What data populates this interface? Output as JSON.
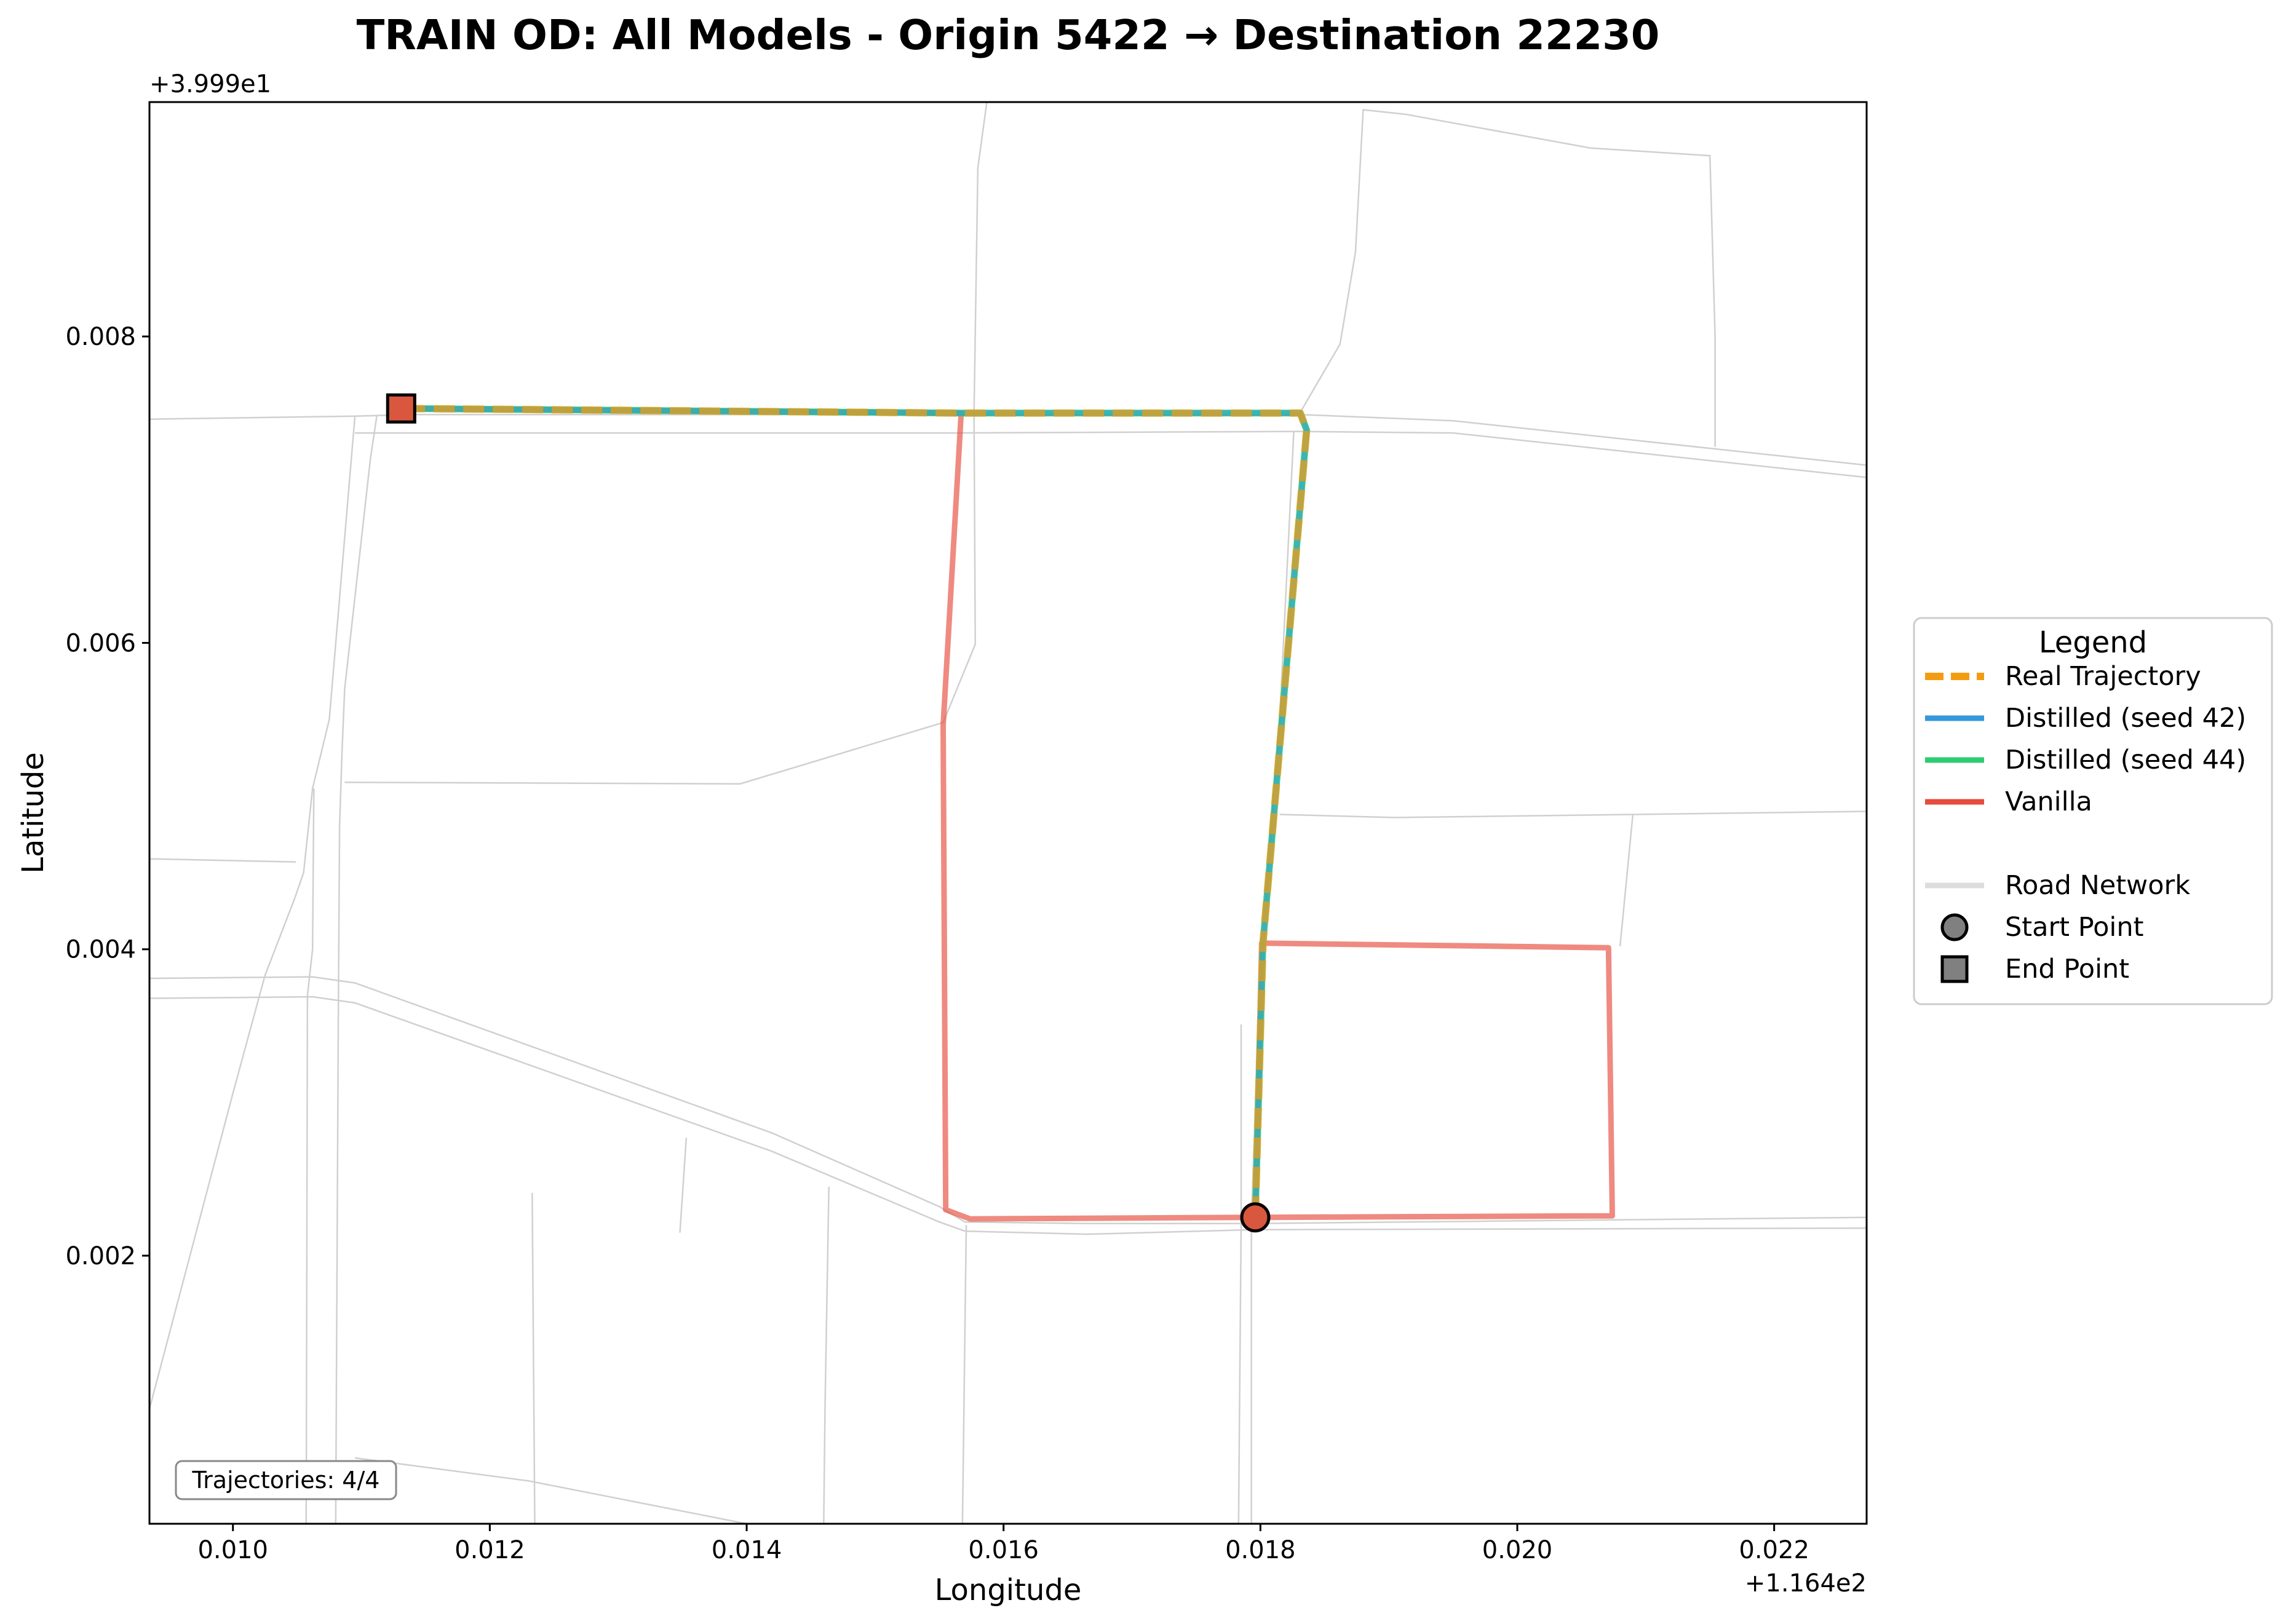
{
  "chart_data": {
    "type": "line",
    "title": "TRAIN OD: All Models - Origin 5422 → Destination 22230",
    "xlabel": "Longitude",
    "ylabel": "Latitude",
    "x_offset_label": "+1.164e2",
    "y_offset_label": "+3.999e1",
    "xlim": [
      0.00935,
      0.02272
    ],
    "ylim": [
      0.00025,
      0.00953
    ],
    "x_ticks": [
      0.01,
      0.012,
      0.014,
      0.016,
      0.018,
      0.02,
      0.022
    ],
    "x_tick_labels": [
      "0.010",
      "0.012",
      "0.014",
      "0.016",
      "0.018",
      "0.020",
      "0.022"
    ],
    "y_ticks": [
      0.002,
      0.004,
      0.006,
      0.008
    ],
    "y_tick_labels": [
      "0.002",
      "0.004",
      "0.006",
      "0.008"
    ],
    "grid": false,
    "legend": {
      "title": "Legend",
      "placement": "outside-right",
      "entries": [
        {
          "label": "Real Trajectory",
          "kind": "dashed-line",
          "color": "#f39c12"
        },
        {
          "label": "Distilled (seed 42)",
          "kind": "line",
          "color": "#3498db"
        },
        {
          "label": "Distilled (seed 44)",
          "kind": "line",
          "color": "#2ecc71"
        },
        {
          "label": "Vanilla",
          "kind": "line",
          "color": "#e74c3c"
        },
        {
          "label": "",
          "kind": "blank",
          "color": ""
        },
        {
          "label": "Road Network",
          "kind": "line",
          "color": "#dddddd"
        },
        {
          "label": "Start Point",
          "kind": "circle",
          "color": "#808080"
        },
        {
          "label": "End Point",
          "kind": "square",
          "color": "#808080"
        }
      ]
    },
    "annotation": "Trajectories: 4/4",
    "start_point": {
      "x": 0.01796,
      "y": 0.00225,
      "color": "#d9573f"
    },
    "end_point": {
      "x": 0.01131,
      "y": 0.00753,
      "color": "#d9573f"
    },
    "series": [
      {
        "name": "Vanilla",
        "color": "#e74c3c",
        "points": [
          [
            0.01796,
            0.00225
          ],
          [
            0.02074,
            0.00226
          ],
          [
            0.02071,
            0.00401
          ],
          [
            0.01801,
            0.00404
          ],
          [
            0.01796,
            0.00225
          ],
          [
            0.01574,
            0.00224
          ],
          [
            0.01555,
            0.0023
          ],
          [
            0.01553,
            0.00546
          ],
          [
            0.01567,
            0.0075
          ],
          [
            0.01131,
            0.00753
          ]
        ]
      },
      {
        "name": "Distilled (seed 44)",
        "color": "#2ecc71",
        "points": [
          [
            0.01796,
            0.00225
          ],
          [
            0.01802,
            0.00404
          ],
          [
            0.01836,
            0.00739
          ],
          [
            0.01831,
            0.0075
          ],
          [
            0.01567,
            0.0075
          ],
          [
            0.01131,
            0.00753
          ]
        ]
      },
      {
        "name": "Distilled (seed 42)",
        "color": "#3498db",
        "points": [
          [
            0.01796,
            0.00225
          ],
          [
            0.01802,
            0.00404
          ],
          [
            0.01836,
            0.00739
          ],
          [
            0.01831,
            0.0075
          ],
          [
            0.01567,
            0.0075
          ],
          [
            0.01131,
            0.00753
          ]
        ]
      },
      {
        "name": "Real Trajectory",
        "color": "#f39c12",
        "points": [
          [
            0.01796,
            0.00225
          ],
          [
            0.01802,
            0.00404
          ],
          [
            0.01836,
            0.00739
          ],
          [
            0.01831,
            0.0075
          ],
          [
            0.01567,
            0.0075
          ],
          [
            0.01131,
            0.00753
          ]
        ]
      }
    ],
    "road_network": [
      [
        [
          0.00935,
          0.00746
        ],
        [
          0.01095,
          0.00748
        ],
        [
          0.0114,
          0.00749
        ],
        [
          0.0155,
          0.00749
        ],
        [
          0.01831,
          0.00749
        ],
        [
          0.0195,
          0.00745
        ],
        [
          0.02272,
          0.00716
        ]
      ],
      [
        [
          0.01095,
          0.00737
        ],
        [
          0.0156,
          0.00737
        ],
        [
          0.0183,
          0.00738
        ],
        [
          0.0195,
          0.00737
        ],
        [
          0.02272,
          0.00708
        ]
      ],
      [
        [
          0.01095,
          0.00748
        ],
        [
          0.01075,
          0.0055
        ],
        [
          0.01062,
          0.00505
        ],
        [
          0.01055,
          0.0045
        ],
        [
          0.01048,
          0.00433
        ],
        [
          0.01025,
          0.00383
        ],
        [
          0.01,
          0.00306
        ],
        [
          0.00935,
          0.001
        ]
      ],
      [
        [
          0.01112,
          0.00748
        ],
        [
          0.01107,
          0.0072
        ],
        [
          0.01087,
          0.0057
        ],
        [
          0.01085,
          0.0053
        ],
        [
          0.01083,
          0.0048
        ],
        [
          0.01082,
          0.0035
        ],
        [
          0.0108,
          0.00025
        ]
      ],
      [
        [
          0.01063,
          0.00505
        ],
        [
          0.01062,
          0.004
        ],
        [
          0.01058,
          0.0037
        ],
        [
          0.01057,
          0.00025
        ]
      ],
      [
        [
          0.00935,
          0.00459
        ],
        [
          0.01049,
          0.00457
        ]
      ],
      [
        [
          0.01087,
          0.00509
        ],
        [
          0.01395,
          0.00508
        ],
        [
          0.01553,
          0.00548
        ],
        [
          0.01578,
          0.00599
        ],
        [
          0.01577,
          0.0075
        ],
        [
          0.0158,
          0.0091
        ],
        [
          0.01587,
          0.00953
        ]
      ],
      [
        [
          0.00935,
          0.00381
        ],
        [
          0.01062,
          0.00382
        ],
        [
          0.01095,
          0.00378
        ],
        [
          0.0142,
          0.0028
        ],
        [
          0.0155,
          0.00232
        ],
        [
          0.0157,
          0.00222
        ],
        [
          0.01665,
          0.00221
        ],
        [
          0.01796,
          0.00221
        ],
        [
          0.02272,
          0.00225
        ]
      ],
      [
        [
          0.00935,
          0.00368
        ],
        [
          0.01062,
          0.00369
        ],
        [
          0.01095,
          0.00365
        ],
        [
          0.0142,
          0.00268
        ],
        [
          0.0155,
          0.00222
        ],
        [
          0.0157,
          0.00216
        ],
        [
          0.01665,
          0.00214
        ],
        [
          0.01796,
          0.00217
        ],
        [
          0.02272,
          0.00218
        ]
      ],
      [
        [
          0.01571,
          0.0022
        ],
        [
          0.01568,
          0.00025
        ]
      ],
      [
        [
          0.01464,
          0.00245
        ],
        [
          0.01461,
          0.001
        ],
        [
          0.0146,
          0.00025
        ]
      ],
      [
        [
          0.01353,
          0.00277
        ],
        [
          0.01348,
          0.00215
        ]
      ],
      [
        [
          0.01233,
          0.00241
        ],
        [
          0.01235,
          0.00025
        ]
      ],
      [
        [
          0.01095,
          0.00068
        ],
        [
          0.0123,
          0.00053
        ],
        [
          0.014,
          0.00025
        ]
      ],
      [
        [
          0.01798,
          0.00351
        ],
        [
          0.01793,
          0.00221
        ],
        [
          0.01793,
          0.00025
        ]
      ],
      [
        [
          0.01785,
          0.00351
        ],
        [
          0.01785,
          0.00221
        ],
        [
          0.01783,
          0.00025
        ]
      ],
      [
        [
          0.01802,
          0.00404
        ],
        [
          0.01815,
          0.0055
        ],
        [
          0.01826,
          0.00738
        ]
      ],
      [
        [
          0.01815,
          0.00488
        ],
        [
          0.01905,
          0.00486
        ],
        [
          0.0209,
          0.00488
        ],
        [
          0.02272,
          0.0049
        ]
      ],
      [
        [
          0.0209,
          0.00488
        ],
        [
          0.0208,
          0.00402
        ]
      ],
      [
        [
          0.0183,
          0.00749
        ],
        [
          0.01862,
          0.00795
        ],
        [
          0.01874,
          0.00855
        ],
        [
          0.0188,
          0.00948
        ],
        [
          0.01913,
          0.00945
        ],
        [
          0.02057,
          0.00923
        ],
        [
          0.0215,
          0.00918
        ],
        [
          0.02154,
          0.008
        ],
        [
          0.02154,
          0.00728
        ]
      ]
    ]
  }
}
